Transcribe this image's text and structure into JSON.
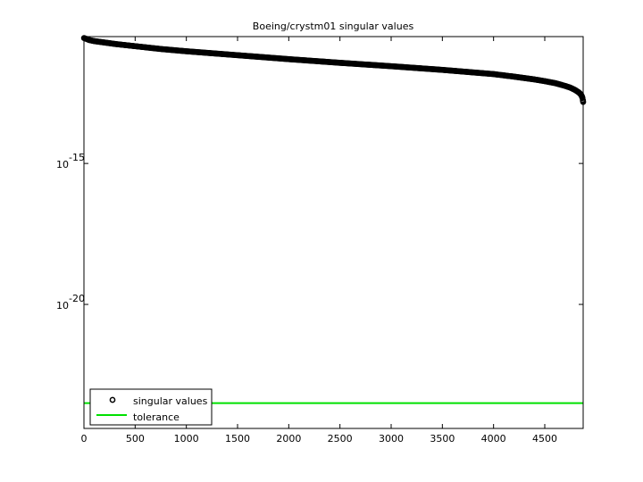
{
  "chart_data": {
    "type": "scatter",
    "title": "Boeing/crystm01 singular values",
    "xlabel": "",
    "ylabel": "",
    "xlim": [
      0,
      4875
    ],
    "ylim_log10": [
      -24.4,
      -10.5
    ],
    "yscale": "log",
    "grid": false,
    "x_ticks": [
      0,
      500,
      1000,
      1500,
      2000,
      2500,
      3000,
      3500,
      4000,
      4500
    ],
    "y_ticks": [
      {
        "base": "10",
        "exponent": "-15",
        "log10": -15
      },
      {
        "base": "10",
        "exponent": "-20",
        "log10": -20
      }
    ],
    "series": [
      {
        "name": "singular values",
        "marker": "circle",
        "color": "#000000",
        "n_points": 4875,
        "x": [
          1,
          50,
          100,
          200,
          300,
          500,
          750,
          1000,
          1500,
          2000,
          2500,
          3000,
          3500,
          4000,
          4200,
          4400,
          4500,
          4600,
          4700,
          4750,
          4800,
          4840,
          4860,
          4870,
          4875
        ],
        "y_log10": [
          -10.55,
          -10.62,
          -10.66,
          -10.71,
          -10.76,
          -10.84,
          -10.94,
          -11.02,
          -11.16,
          -11.3,
          -11.43,
          -11.55,
          -11.68,
          -11.83,
          -11.92,
          -12.02,
          -12.08,
          -12.15,
          -12.25,
          -12.31,
          -12.4,
          -12.5,
          -12.59,
          -12.7,
          -12.82
        ]
      },
      {
        "name": "tolerance",
        "style": "line",
        "color": "#00e000",
        "y_log10": -23.5
      }
    ],
    "legend": {
      "position": "bottom-left",
      "entries": [
        "singular values",
        "tolerance"
      ]
    }
  }
}
